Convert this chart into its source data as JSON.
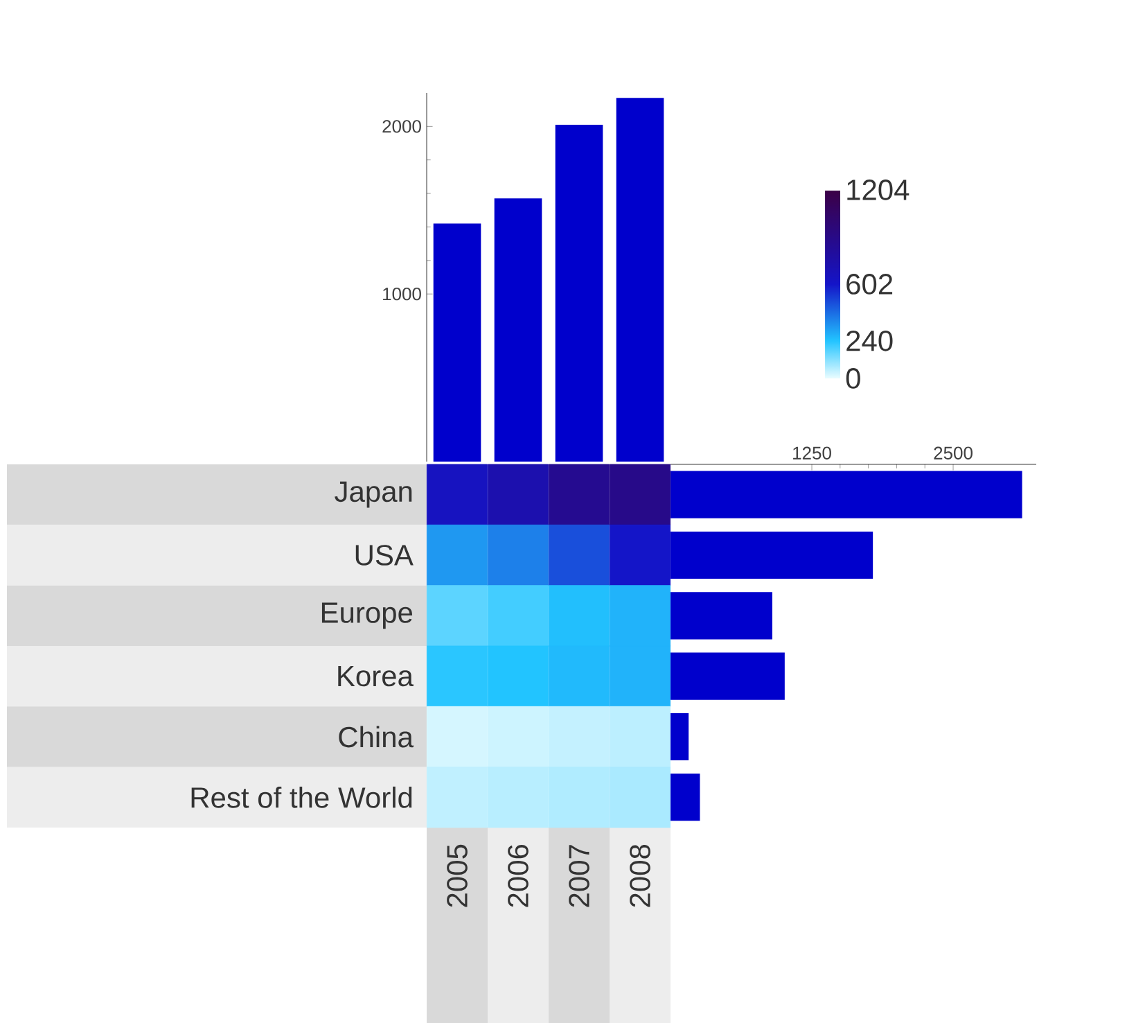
{
  "chart_data": [
    {
      "type": "bar",
      "categories": [
        null,
        null,
        null,
        null
      ],
      "values": [
        1420,
        1570,
        2010,
        2170
      ],
      "color": "#0000cc",
      "ylim": [
        0,
        2200
      ],
      "yticks": [
        1000,
        2000
      ],
      "tick_labels": "y"
    },
    {
      "type": "heatmap",
      "categories": [
        "2005",
        "2006",
        "2007",
        "2008"
      ],
      "y_categories": [
        "Japan",
        "USA",
        "Europe",
        "Korea",
        "China",
        "Rest of the World"
      ],
      "cells": [
        [
          640,
          720,
          860,
          890
        ],
        [
          330,
          380,
          480,
          600
        ],
        [
          170,
          200,
          250,
          275
        ],
        [
          230,
          240,
          260,
          275
        ],
        [
          25,
          35,
          45,
          55
        ],
        [
          50,
          60,
          70,
          77
        ]
      ],
      "clim": [
        0,
        1204
      ],
      "cticks": [
        0,
        240,
        602,
        1204
      ]
    },
    {
      "type": "bar",
      "orientation": "horizontal",
      "categories": [
        null,
        null,
        null,
        null,
        null,
        null
      ],
      "values": [
        3110,
        1790,
        900,
        1010,
        160,
        260
      ],
      "color": "#0000cc",
      "xlim": [
        0,
        3235
      ],
      "xticks": [
        1250,
        2500
      ],
      "tick_labels": "x"
    }
  ]
}
